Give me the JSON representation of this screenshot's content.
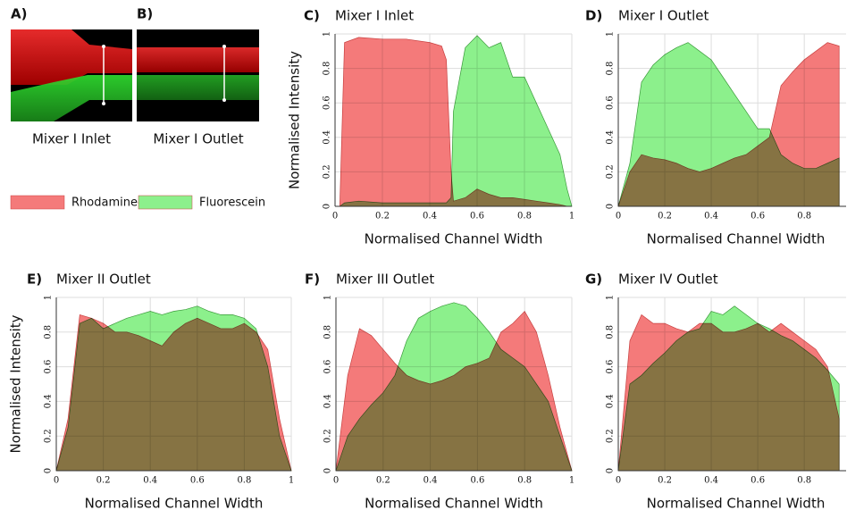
{
  "panels": [
    {
      "label": "A)",
      "caption": "Mixer I Inlet"
    },
    {
      "label": "B)",
      "caption": "Mixer I Outlet"
    }
  ],
  "chart_data": [
    {
      "type": "area",
      "panel_label": "C)",
      "title": "Mixer I Inlet",
      "xlabel": "Normalised Channel Width",
      "ylabel": "Normalised Intensity",
      "x": [
        0,
        0.02,
        0.04,
        0.1,
        0.2,
        0.3,
        0.4,
        0.45,
        0.47,
        0.49,
        0.5,
        0.55,
        0.6,
        0.65,
        0.7,
        0.75,
        0.8,
        0.85,
        0.9,
        0.95,
        0.98,
        1
      ],
      "series": [
        {
          "name": "Rhodamine-B",
          "color": "#f47a7a",
          "values": [
            0,
            0,
            0.95,
            0.98,
            0.97,
            0.97,
            0.95,
            0.93,
            0.85,
            0.2,
            0.03,
            0.05,
            0.1,
            0.07,
            0.05,
            0.05,
            0.04,
            0.03,
            0.02,
            0.01,
            0,
            0
          ]
        },
        {
          "name": "Fluorescein",
          "color": "#8cf08c",
          "values": [
            0,
            0,
            0.02,
            0.03,
            0.02,
            0.02,
            0.02,
            0.02,
            0.02,
            0.05,
            0.55,
            0.92,
            0.99,
            0.92,
            0.95,
            0.75,
            0.75,
            0.6,
            0.45,
            0.3,
            0.1,
            0
          ]
        }
      ],
      "xlim": [
        0,
        1
      ],
      "ylim": [
        0,
        1
      ],
      "xticks": [
        0,
        0.2,
        0.4,
        0.6,
        0.8,
        1
      ],
      "yticks": [
        0,
        0.2,
        0.4,
        0.6,
        0.8,
        1
      ],
      "grid": true
    },
    {
      "type": "area",
      "panel_label": "D)",
      "title": "Mixer I Outlet",
      "xlabel": "Normalised Channel Width",
      "x": [
        0,
        0.05,
        0.1,
        0.15,
        0.2,
        0.25,
        0.3,
        0.35,
        0.4,
        0.45,
        0.5,
        0.55,
        0.6,
        0.65,
        0.7,
        0.75,
        0.8,
        0.85,
        0.9,
        0.95
      ],
      "series": [
        {
          "name": "Rhodamine-B",
          "color": "#f47a7a",
          "values": [
            0,
            0.2,
            0.3,
            0.28,
            0.27,
            0.25,
            0.22,
            0.2,
            0.22,
            0.25,
            0.28,
            0.3,
            0.35,
            0.4,
            0.7,
            0.78,
            0.85,
            0.9,
            0.95,
            0.93
          ]
        },
        {
          "name": "Fluorescein",
          "color": "#8cf08c",
          "values": [
            0,
            0.25,
            0.72,
            0.82,
            0.88,
            0.92,
            0.95,
            0.9,
            0.85,
            0.75,
            0.65,
            0.55,
            0.45,
            0.45,
            0.3,
            0.25,
            0.22,
            0.22,
            0.25,
            0.28
          ]
        }
      ],
      "xlim": [
        0,
        0.98
      ],
      "ylim": [
        0,
        1
      ],
      "xticks": [
        0,
        0.2,
        0.4,
        0.6,
        0.8
      ],
      "yticks": [
        0,
        0.2,
        0.4,
        0.6,
        0.8,
        1
      ],
      "grid": true
    },
    {
      "type": "area",
      "panel_label": "E)",
      "title": "Mixer II Outlet",
      "xlabel": "Normalised Channel Width",
      "ylabel": "Normalised Intensity",
      "x": [
        0,
        0.05,
        0.1,
        0.15,
        0.2,
        0.25,
        0.3,
        0.35,
        0.4,
        0.45,
        0.5,
        0.55,
        0.6,
        0.65,
        0.7,
        0.75,
        0.8,
        0.85,
        0.9,
        0.95,
        1
      ],
      "series": [
        {
          "name": "Rhodamine-B",
          "color": "#f47a7a",
          "values": [
            0,
            0.3,
            0.9,
            0.88,
            0.85,
            0.8,
            0.8,
            0.78,
            0.75,
            0.72,
            0.8,
            0.85,
            0.88,
            0.85,
            0.82,
            0.82,
            0.85,
            0.8,
            0.7,
            0.3,
            0
          ]
        },
        {
          "name": "Fluorescein",
          "color": "#8cf08c",
          "values": [
            0,
            0.25,
            0.85,
            0.88,
            0.82,
            0.85,
            0.88,
            0.9,
            0.92,
            0.9,
            0.92,
            0.93,
            0.95,
            0.92,
            0.9,
            0.9,
            0.88,
            0.82,
            0.6,
            0.2,
            0
          ]
        }
      ],
      "xlim": [
        0,
        1
      ],
      "ylim": [
        0,
        1
      ],
      "xticks": [
        0,
        0.2,
        0.4,
        0.6,
        0.8,
        1
      ],
      "yticks": [
        0,
        0.2,
        0.4,
        0.6,
        0.8,
        1
      ],
      "grid": true
    },
    {
      "type": "area",
      "panel_label": "F)",
      "title": "Mixer III Outlet",
      "xlabel": "Normalised Channel Width",
      "x": [
        0,
        0.05,
        0.1,
        0.15,
        0.2,
        0.25,
        0.3,
        0.35,
        0.4,
        0.45,
        0.5,
        0.55,
        0.6,
        0.65,
        0.7,
        0.75,
        0.8,
        0.85,
        0.9,
        0.95,
        1
      ],
      "series": [
        {
          "name": "Rhodamine-B",
          "color": "#f47a7a",
          "values": [
            0,
            0.55,
            0.82,
            0.78,
            0.7,
            0.62,
            0.55,
            0.52,
            0.5,
            0.52,
            0.55,
            0.6,
            0.62,
            0.65,
            0.8,
            0.85,
            0.92,
            0.8,
            0.55,
            0.25,
            0
          ]
        },
        {
          "name": "Fluorescein",
          "color": "#8cf08c",
          "values": [
            0,
            0.2,
            0.3,
            0.38,
            0.45,
            0.55,
            0.75,
            0.88,
            0.92,
            0.95,
            0.97,
            0.95,
            0.88,
            0.8,
            0.7,
            0.65,
            0.6,
            0.5,
            0.4,
            0.2,
            0
          ]
        }
      ],
      "xlim": [
        0,
        1
      ],
      "ylim": [
        0,
        1
      ],
      "xticks": [
        0,
        0.2,
        0.4,
        0.6,
        0.8,
        1
      ],
      "yticks": [
        0,
        0.2,
        0.4,
        0.6,
        0.8,
        1
      ],
      "grid": true
    },
    {
      "type": "area",
      "panel_label": "G)",
      "title": "Mixer IV Outlet",
      "xlabel": "Normalised Channel Width",
      "x": [
        0,
        0.05,
        0.1,
        0.15,
        0.2,
        0.25,
        0.3,
        0.35,
        0.4,
        0.45,
        0.5,
        0.55,
        0.6,
        0.65,
        0.7,
        0.75,
        0.8,
        0.85,
        0.9,
        0.95
      ],
      "series": [
        {
          "name": "Rhodamine-B",
          "color": "#f47a7a",
          "values": [
            0,
            0.75,
            0.9,
            0.85,
            0.85,
            0.82,
            0.8,
            0.85,
            0.85,
            0.8,
            0.8,
            0.82,
            0.85,
            0.8,
            0.85,
            0.8,
            0.75,
            0.7,
            0.6,
            0.3
          ]
        },
        {
          "name": "Fluorescein",
          "color": "#8cf08c",
          "values": [
            0,
            0.5,
            0.55,
            0.62,
            0.68,
            0.75,
            0.8,
            0.82,
            0.92,
            0.9,
            0.95,
            0.9,
            0.85,
            0.82,
            0.78,
            0.75,
            0.7,
            0.65,
            0.58,
            0.5
          ]
        }
      ],
      "xlim": [
        0,
        0.98
      ],
      "ylim": [
        0,
        1
      ],
      "xticks": [
        0,
        0.2,
        0.4,
        0.6,
        0.8
      ],
      "yticks": [
        0,
        0.2,
        0.4,
        0.6,
        0.8,
        1
      ],
      "grid": true
    }
  ]
}
